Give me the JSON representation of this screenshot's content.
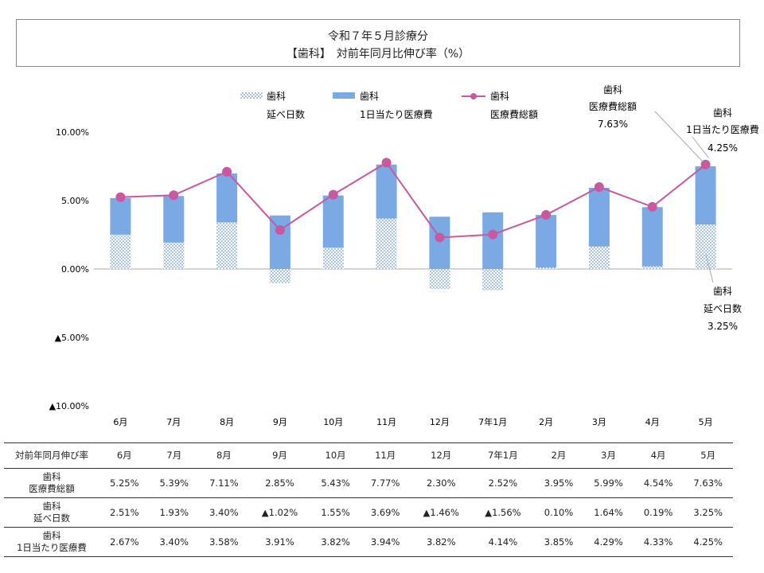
{
  "title": {
    "line1": "令和７年５月診療分",
    "line2": "【歯科】　対前年同月比伸び率（%）"
  },
  "colors": {
    "bar_color": "#7aa9e3",
    "bar_pattern_color": "#6a97d8",
    "line_color": "#c858a0",
    "axis_color": "#aaaaaa"
  },
  "legend": {
    "item1": {
      "line1": "歯科",
      "line2": "延べ日数"
    },
    "item2": {
      "line1": "歯科",
      "line2": "1日当たり医療費"
    },
    "item3": {
      "line1": "歯科",
      "line2": "医療費総額"
    }
  },
  "callouts": {
    "total": {
      "line1": "歯科",
      "line2": "医療費総額",
      "line3": "7.63%"
    },
    "perday": {
      "line1": "歯科",
      "line2": "1日当たり医療費",
      "line3": "4.25%"
    },
    "days": {
      "line1": "歯科",
      "line2": "延べ日数",
      "line3": "3.25%"
    }
  },
  "chart_data": {
    "type": "bar",
    "categories": [
      "6月",
      "7月",
      "8月",
      "9月",
      "10月",
      "11月",
      "12月",
      "7年1月",
      "2月",
      "3月",
      "4月",
      "5月"
    ],
    "y_ticks": [
      "10.00%",
      "5.00%",
      "0.00%",
      "▲5.00%",
      "▲10.00%"
    ],
    "ylim": [
      -10,
      10
    ],
    "stacked": true,
    "series": [
      {
        "name": "歯科 延べ日数",
        "type": "bar",
        "values": [
          2.51,
          1.93,
          3.4,
          -1.02,
          1.55,
          3.69,
          -1.46,
          -1.56,
          0.1,
          1.64,
          0.19,
          3.25
        ]
      },
      {
        "name": "歯科 1日当たり医療費",
        "type": "bar",
        "values": [
          2.67,
          3.4,
          3.58,
          3.91,
          3.82,
          3.94,
          3.82,
          4.14,
          3.85,
          4.29,
          4.33,
          4.25
        ]
      },
      {
        "name": "歯科 医療費総額",
        "type": "line",
        "values": [
          5.25,
          5.39,
          7.11,
          2.85,
          5.43,
          7.77,
          2.3,
          2.52,
          3.95,
          5.99,
          4.54,
          7.63
        ]
      }
    ]
  },
  "table": {
    "header_label": "対前年同月伸び率",
    "columns": [
      "6月",
      "7月",
      "8月",
      "9月",
      "10月",
      "11月",
      "12月",
      "7年1月",
      "2月",
      "3月",
      "4月",
      "5月"
    ],
    "rows": [
      {
        "label1": "歯科",
        "label2": "医療費総額",
        "cells": [
          "5.25%",
          "5.39%",
          "7.11%",
          "2.85%",
          "5.43%",
          "7.77%",
          "2.30%",
          "2.52%",
          "3.95%",
          "5.99%",
          "4.54%",
          "7.63%"
        ]
      },
      {
        "label1": "歯科",
        "label2": "延べ日数",
        "cells": [
          "2.51%",
          "1.93%",
          "3.40%",
          "▲1.02%",
          "1.55%",
          "3.69%",
          "▲1.46%",
          "▲1.56%",
          "0.10%",
          "1.64%",
          "0.19%",
          "3.25%"
        ]
      },
      {
        "label1": "歯科",
        "label2": "1日当たり医療費",
        "cells": [
          "2.67%",
          "3.40%",
          "3.58%",
          "3.91%",
          "3.82%",
          "3.94%",
          "3.82%",
          "4.14%",
          "3.85%",
          "4.29%",
          "4.33%",
          "4.25%"
        ]
      }
    ]
  }
}
